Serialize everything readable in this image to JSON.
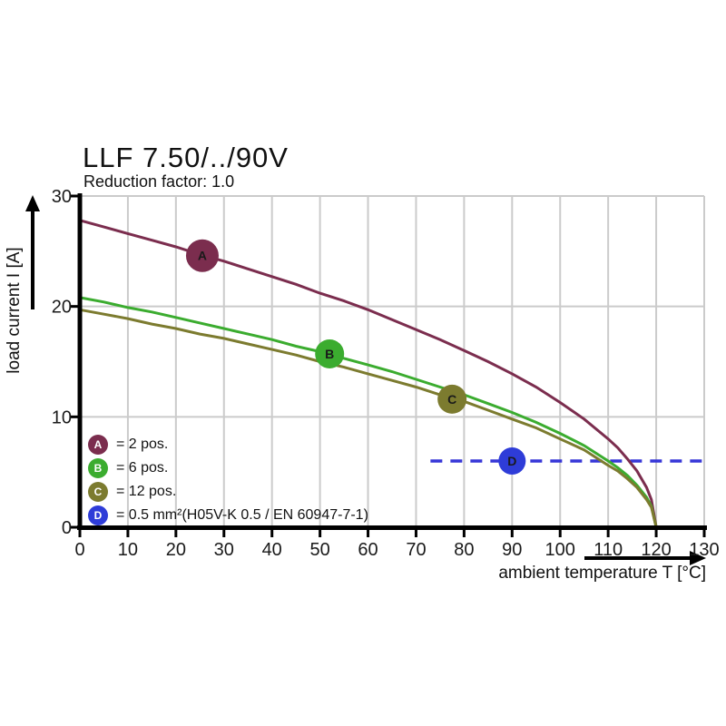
{
  "page": {
    "title": "LLF 7.50/../90V",
    "subtitle": "Reduction factor: 1.0"
  },
  "colors": {
    "series_a": "#7B2D4E",
    "series_b": "#3BAC2F",
    "series_c": "#7C7B2F",
    "series_d": "#2E3CD8",
    "grid": "#CBCBCB",
    "axis": "#000000"
  },
  "legend": {
    "items": [
      {
        "key": "A",
        "symbol_color": "#7B2D4E",
        "label": "= 2 pos."
      },
      {
        "key": "B",
        "symbol_color": "#3BAC2F",
        "label": "= 6 pos."
      },
      {
        "key": "C",
        "symbol_color": "#7C7B2F",
        "label": "= 12 pos."
      },
      {
        "key": "D",
        "symbol_color": "#2E3CD8",
        "label": "= 0.5 mm²(H05V-K 0.5 / EN 60947-7-1)"
      }
    ]
  },
  "chart_data": {
    "type": "line",
    "title": "LLF 7.50/../90V",
    "subtitle": "Reduction factor: 1.0",
    "xlabel": "ambient temperature T [°C]",
    "ylabel": "load current I [A]",
    "xlim": [
      0,
      130
    ],
    "ylim": [
      0,
      30
    ],
    "x_ticks": [
      0,
      10,
      20,
      30,
      40,
      50,
      60,
      70,
      80,
      90,
      100,
      110,
      120,
      130
    ],
    "y_ticks": [
      0,
      10,
      20,
      30
    ],
    "grid": true,
    "legend_position": "inside bottom-left",
    "series": [
      {
        "id": "A",
        "name": "2 pos.",
        "color": "#7B2D4E",
        "marker": {
          "x": 25.5,
          "y": 24.6,
          "letter": "A",
          "letter_color": "#111111"
        },
        "points": [
          [
            0,
            27.8
          ],
          [
            5,
            27.2
          ],
          [
            10,
            26.6
          ],
          [
            15,
            26.0
          ],
          [
            20,
            25.4
          ],
          [
            25,
            24.7
          ],
          [
            30,
            24.1
          ],
          [
            35,
            23.4
          ],
          [
            40,
            22.7
          ],
          [
            45,
            22.0
          ],
          [
            50,
            21.2
          ],
          [
            55,
            20.5
          ],
          [
            60,
            19.7
          ],
          [
            65,
            18.8
          ],
          [
            70,
            17.9
          ],
          [
            75,
            17.0
          ],
          [
            80,
            16.0
          ],
          [
            85,
            15.0
          ],
          [
            90,
            13.9
          ],
          [
            95,
            12.7
          ],
          [
            100,
            11.3
          ],
          [
            105,
            9.8
          ],
          [
            110,
            8.0
          ],
          [
            112,
            7.2
          ],
          [
            114,
            6.2
          ],
          [
            116,
            5.1
          ],
          [
            118,
            3.6
          ],
          [
            119,
            2.5
          ],
          [
            120,
            0
          ]
        ]
      },
      {
        "id": "B",
        "name": "6 pos.",
        "color": "#3BAC2F",
        "marker": {
          "x": 52,
          "y": 15.7,
          "letter": "B",
          "letter_color": "#ffffff"
        },
        "points": [
          [
            0,
            20.8
          ],
          [
            5,
            20.4
          ],
          [
            10,
            19.9
          ],
          [
            15,
            19.5
          ],
          [
            20,
            19.0
          ],
          [
            25,
            18.5
          ],
          [
            30,
            18.0
          ],
          [
            35,
            17.5
          ],
          [
            40,
            17.0
          ],
          [
            45,
            16.4
          ],
          [
            50,
            15.9
          ],
          [
            55,
            15.3
          ],
          [
            60,
            14.7
          ],
          [
            65,
            14.1
          ],
          [
            70,
            13.4
          ],
          [
            75,
            12.7
          ],
          [
            80,
            12.0
          ],
          [
            85,
            11.2
          ],
          [
            90,
            10.4
          ],
          [
            95,
            9.5
          ],
          [
            100,
            8.5
          ],
          [
            105,
            7.4
          ],
          [
            110,
            6.0
          ],
          [
            112,
            5.4
          ],
          [
            114,
            4.7
          ],
          [
            116,
            3.8
          ],
          [
            118,
            2.7
          ],
          [
            119,
            1.9
          ],
          [
            120,
            0
          ]
        ]
      },
      {
        "id": "C",
        "name": "12 pos.",
        "color": "#7C7B2F",
        "marker": {
          "x": 77.5,
          "y": 11.6,
          "letter": "C",
          "letter_color": "#111111"
        },
        "points": [
          [
            0,
            19.7
          ],
          [
            5,
            19.3
          ],
          [
            10,
            18.9
          ],
          [
            15,
            18.4
          ],
          [
            20,
            18.0
          ],
          [
            25,
            17.5
          ],
          [
            30,
            17.1
          ],
          [
            35,
            16.6
          ],
          [
            40,
            16.1
          ],
          [
            45,
            15.6
          ],
          [
            50,
            15.0
          ],
          [
            55,
            14.5
          ],
          [
            60,
            13.9
          ],
          [
            65,
            13.3
          ],
          [
            70,
            12.7
          ],
          [
            75,
            12.0
          ],
          [
            80,
            11.4
          ],
          [
            85,
            10.6
          ],
          [
            90,
            9.8
          ],
          [
            95,
            9.0
          ],
          [
            100,
            8.0
          ],
          [
            105,
            7.0
          ],
          [
            110,
            5.6
          ],
          [
            112,
            5.1
          ],
          [
            114,
            4.4
          ],
          [
            116,
            3.6
          ],
          [
            118,
            2.5
          ],
          [
            119,
            1.8
          ],
          [
            120,
            0
          ]
        ]
      }
    ],
    "reference_line": {
      "id": "D",
      "name": "0.5 mm²(H05V-K 0.5 / EN 60947-7-1)",
      "y": 6,
      "x_start": 73,
      "x_end": 130,
      "style": "dashed",
      "color": "#3636D8",
      "marker": {
        "x": 90,
        "y": 6,
        "letter": "D",
        "letter_color": "#ffffff",
        "fill": "#2E3CD8"
      }
    }
  }
}
